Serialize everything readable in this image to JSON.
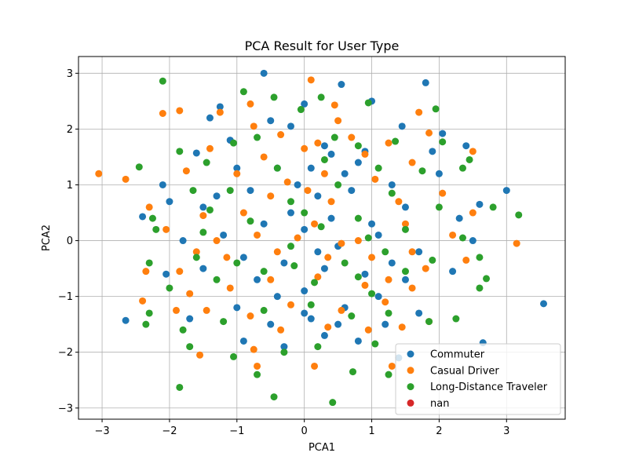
{
  "chart_data": {
    "type": "scatter",
    "title": "PCA Result for User Type",
    "xlabel": "PCA1",
    "ylabel": "PCA2",
    "xlim": [
      -3.35,
      3.87
    ],
    "ylim": [
      -3.2,
      3.3
    ],
    "x_ticks": [
      -3,
      -2,
      -1,
      0,
      1,
      2,
      3
    ],
    "y_ticks": [
      -3,
      -2,
      -1,
      0,
      1,
      2,
      3
    ],
    "x_tick_labels": [
      "−3",
      "−2",
      "−1",
      "0",
      "1",
      "2",
      "3"
    ],
    "y_tick_labels": [
      "−3",
      "−2",
      "−1",
      "0",
      "1",
      "2",
      "3"
    ],
    "grid": true,
    "legend_position": "lower-right",
    "series": [
      {
        "name": "Commuter",
        "color": "#1f77b4",
        "points": [
          [
            -0.6,
            3.0
          ],
          [
            0.55,
            2.8
          ],
          [
            1.8,
            2.83
          ],
          [
            -1.25,
            2.4
          ],
          [
            -1.4,
            2.2
          ],
          [
            -0.5,
            2.15
          ],
          [
            0.0,
            2.45
          ],
          [
            1.0,
            2.5
          ],
          [
            2.05,
            1.92
          ],
          [
            1.45,
            2.05
          ],
          [
            2.4,
            1.7
          ],
          [
            -0.2,
            2.05
          ],
          [
            0.3,
            1.7
          ],
          [
            0.9,
            1.6
          ],
          [
            -1.6,
            1.57
          ],
          [
            -1.0,
            1.3
          ],
          [
            0.1,
            1.3
          ],
          [
            0.6,
            1.2
          ],
          [
            1.3,
            1.0
          ],
          [
            2.0,
            1.2
          ],
          [
            -2.4,
            0.43
          ],
          [
            -2.0,
            0.7
          ],
          [
            -1.5,
            0.6
          ],
          [
            -0.8,
            0.9
          ],
          [
            0.2,
            0.8
          ],
          [
            0.7,
            0.9
          ],
          [
            1.5,
            0.6
          ],
          [
            2.3,
            0.4
          ],
          [
            3.0,
            0.9
          ],
          [
            -1.8,
            0.0
          ],
          [
            -1.2,
            0.1
          ],
          [
            -0.6,
            0.3
          ],
          [
            0.0,
            0.2
          ],
          [
            0.5,
            -0.1
          ],
          [
            1.1,
            0.1
          ],
          [
            1.7,
            -0.2
          ],
          [
            2.5,
            0.0
          ],
          [
            -2.05,
            -0.6
          ],
          [
            -1.5,
            -0.5
          ],
          [
            -0.9,
            -0.3
          ],
          [
            -0.3,
            -0.4
          ],
          [
            0.3,
            -0.5
          ],
          [
            0.9,
            -0.6
          ],
          [
            1.5,
            -0.7
          ],
          [
            2.2,
            -0.55
          ],
          [
            3.55,
            -1.13
          ],
          [
            -2.65,
            -1.43
          ],
          [
            -1.7,
            -1.4
          ],
          [
            -1.0,
            -1.2
          ],
          [
            -0.4,
            -1.0
          ],
          [
            0.0,
            -0.9
          ],
          [
            0.6,
            -1.2
          ],
          [
            1.1,
            -1.0
          ],
          [
            1.7,
            -1.3
          ],
          [
            2.65,
            -1.83
          ],
          [
            -0.9,
            -1.8
          ],
          [
            -0.3,
            -1.9
          ],
          [
            0.3,
            -1.7
          ],
          [
            0.8,
            -1.8
          ],
          [
            1.4,
            -2.1
          ],
          [
            -0.5,
            -1.5
          ],
          [
            0.1,
            -1.4
          ],
          [
            0.5,
            -1.5
          ],
          [
            -1.3,
            0.8
          ],
          [
            -0.2,
            0.5
          ],
          [
            0.4,
            0.4
          ],
          [
            1.0,
            0.3
          ],
          [
            -0.7,
            -0.7
          ],
          [
            0.2,
            -0.2
          ],
          [
            1.3,
            -0.4
          ],
          [
            -0.1,
            1.0
          ],
          [
            0.8,
            1.4
          ],
          [
            -1.1,
            1.8
          ],
          [
            0.4,
            1.55
          ],
          [
            1.9,
            1.6
          ],
          [
            2.6,
            0.65
          ],
          [
            -2.1,
            1.0
          ],
          [
            -0.4,
            1.3
          ],
          [
            0.0,
            -1.3
          ],
          [
            1.2,
            -1.5
          ]
        ]
      },
      {
        "name": "Casual Driver",
        "color": "#ff7f0e",
        "points": [
          [
            -3.05,
            1.2
          ],
          [
            -2.65,
            1.1
          ],
          [
            -2.1,
            2.28
          ],
          [
            -1.85,
            2.33
          ],
          [
            -1.25,
            2.3
          ],
          [
            -0.8,
            2.45
          ],
          [
            0.1,
            2.88
          ],
          [
            0.45,
            2.43
          ],
          [
            1.7,
            2.3
          ],
          [
            1.85,
            1.93
          ],
          [
            0.5,
            2.15
          ],
          [
            -0.75,
            2.05
          ],
          [
            -0.35,
            1.9
          ],
          [
            0.2,
            1.75
          ],
          [
            1.25,
            1.75
          ],
          [
            2.5,
            1.6
          ],
          [
            -1.4,
            1.65
          ],
          [
            -0.6,
            1.5
          ],
          [
            0.0,
            1.65
          ],
          [
            0.9,
            1.55
          ],
          [
            1.6,
            1.4
          ],
          [
            -2.3,
            0.6
          ],
          [
            -1.75,
            1.25
          ],
          [
            -1.0,
            1.2
          ],
          [
            0.3,
            1.2
          ],
          [
            1.05,
            1.1
          ],
          [
            2.05,
            0.85
          ],
          [
            -1.5,
            0.45
          ],
          [
            -0.5,
            0.8
          ],
          [
            0.4,
            0.7
          ],
          [
            1.4,
            0.7
          ],
          [
            2.5,
            0.5
          ],
          [
            3.15,
            -0.05
          ],
          [
            -2.05,
            0.2
          ],
          [
            -1.3,
            0.0
          ],
          [
            -0.7,
            0.1
          ],
          [
            0.15,
            0.3
          ],
          [
            0.8,
            0.0
          ],
          [
            1.5,
            0.3
          ],
          [
            2.2,
            0.1
          ],
          [
            -2.35,
            -0.55
          ],
          [
            -1.85,
            -0.55
          ],
          [
            -1.15,
            -0.3
          ],
          [
            -0.4,
            -0.2
          ],
          [
            0.35,
            -0.3
          ],
          [
            1.0,
            -0.3
          ],
          [
            1.8,
            -0.5
          ],
          [
            2.4,
            -0.35
          ],
          [
            -2.4,
            -1.08
          ],
          [
            -1.7,
            -0.95
          ],
          [
            -1.1,
            -0.85
          ],
          [
            -0.5,
            -0.7
          ],
          [
            0.2,
            -0.65
          ],
          [
            0.9,
            -0.8
          ],
          [
            1.6,
            -0.85
          ],
          [
            -1.9,
            -1.25
          ],
          [
            -1.45,
            -1.25
          ],
          [
            -0.8,
            -1.35
          ],
          [
            -0.2,
            -1.15
          ],
          [
            0.55,
            -1.25
          ],
          [
            1.2,
            -1.1
          ],
          [
            1.85,
            -1.45
          ],
          [
            -1.55,
            -2.05
          ],
          [
            -0.75,
            -1.95
          ],
          [
            -0.7,
            -2.25
          ],
          [
            0.15,
            -2.25
          ],
          [
            1.3,
            -2.25
          ],
          [
            -0.35,
            -1.6
          ],
          [
            0.35,
            -1.55
          ],
          [
            0.95,
            -1.6
          ],
          [
            1.45,
            -1.55
          ],
          [
            -0.1,
            0.05
          ],
          [
            0.55,
            -0.05
          ],
          [
            1.25,
            -0.7
          ],
          [
            -0.9,
            0.5
          ],
          [
            0.05,
            0.9
          ],
          [
            0.7,
            1.85
          ],
          [
            -0.25,
            1.05
          ],
          [
            1.6,
            -0.2
          ],
          [
            -1.6,
            -0.2
          ]
        ]
      },
      {
        "name": "Long-Distance Traveler",
        "color": "#2ca02c",
        "points": [
          [
            -2.1,
            2.86
          ],
          [
            -0.9,
            2.67
          ],
          [
            -0.45,
            2.57
          ],
          [
            0.25,
            2.57
          ],
          [
            0.95,
            2.47
          ],
          [
            1.95,
            2.36
          ],
          [
            -0.05,
            2.35
          ],
          [
            -1.85,
            1.6
          ],
          [
            -1.05,
            1.75
          ],
          [
            -0.7,
            1.85
          ],
          [
            0.45,
            1.85
          ],
          [
            0.8,
            1.7
          ],
          [
            1.35,
            1.78
          ],
          [
            2.05,
            1.77
          ],
          [
            2.45,
            1.45
          ],
          [
            -2.45,
            1.32
          ],
          [
            -1.45,
            1.4
          ],
          [
            -0.4,
            1.3
          ],
          [
            0.3,
            1.45
          ],
          [
            1.1,
            1.3
          ],
          [
            1.75,
            1.25
          ],
          [
            2.35,
            1.3
          ],
          [
            -2.25,
            0.4
          ],
          [
            -1.65,
            0.9
          ],
          [
            -1.1,
            0.9
          ],
          [
            -0.2,
            0.7
          ],
          [
            0.5,
            1.0
          ],
          [
            1.3,
            0.85
          ],
          [
            2.0,
            0.6
          ],
          [
            2.8,
            0.6
          ],
          [
            3.18,
            0.46
          ],
          [
            -2.2,
            0.2
          ],
          [
            -1.5,
            0.15
          ],
          [
            -0.8,
            0.35
          ],
          [
            0.0,
            0.5
          ],
          [
            0.8,
            0.4
          ],
          [
            1.5,
            0.2
          ],
          [
            2.35,
            0.05
          ],
          [
            -2.3,
            -0.4
          ],
          [
            -1.6,
            -0.3
          ],
          [
            -1.0,
            -0.4
          ],
          [
            -0.2,
            -0.1
          ],
          [
            0.6,
            -0.4
          ],
          [
            1.2,
            -0.2
          ],
          [
            1.9,
            -0.35
          ],
          [
            2.6,
            -0.3
          ],
          [
            -2.3,
            -1.3
          ],
          [
            -2.0,
            -0.85
          ],
          [
            -1.3,
            -0.7
          ],
          [
            -0.6,
            -0.55
          ],
          [
            0.15,
            -0.75
          ],
          [
            0.8,
            -0.65
          ],
          [
            1.5,
            -0.55
          ],
          [
            2.6,
            -0.85
          ],
          [
            2.7,
            -0.68
          ],
          [
            -2.35,
            -1.5
          ],
          [
            -1.8,
            -1.6
          ],
          [
            -1.2,
            -1.45
          ],
          [
            -0.6,
            -1.25
          ],
          [
            0.1,
            -1.15
          ],
          [
            0.7,
            -1.35
          ],
          [
            1.25,
            -1.3
          ],
          [
            1.85,
            -1.45
          ],
          [
            2.25,
            -1.4
          ],
          [
            -1.85,
            -2.63
          ],
          [
            -1.7,
            -1.9
          ],
          [
            -1.05,
            -2.08
          ],
          [
            -0.7,
            -2.4
          ],
          [
            -0.45,
            -2.8
          ],
          [
            0.2,
            -1.9
          ],
          [
            0.42,
            -2.9
          ],
          [
            0.72,
            -2.35
          ],
          [
            1.25,
            -2.4
          ],
          [
            -0.3,
            -2.0
          ],
          [
            1.05,
            -1.85
          ],
          [
            -1.4,
            0.55
          ],
          [
            0.25,
            0.25
          ],
          [
            1.0,
            -0.95
          ],
          [
            -0.15,
            -0.45
          ],
          [
            0.95,
            0.05
          ]
        ]
      },
      {
        "name": "nan",
        "color": "#d62728",
        "points": []
      }
    ]
  }
}
